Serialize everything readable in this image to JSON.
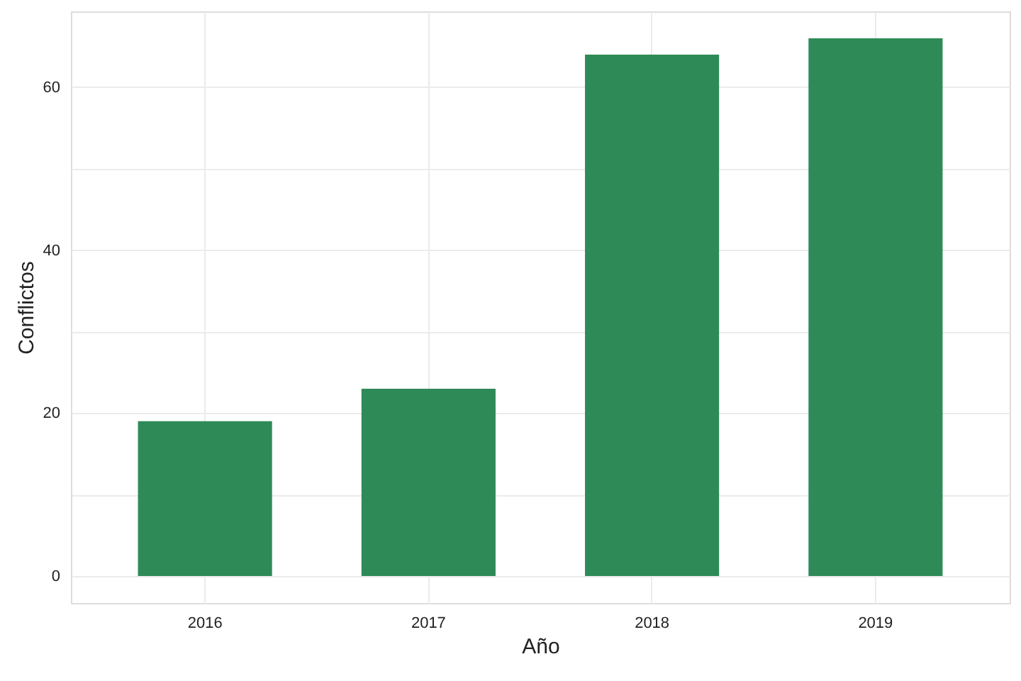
{
  "chart_data": {
    "type": "bar",
    "xlabel": "Año",
    "ylabel": "Conflictos",
    "categories": [
      "2016",
      "2017",
      "2018",
      "2019"
    ],
    "values": [
      19,
      23,
      64,
      66
    ],
    "color": "#2e8b57",
    "ylim": [
      -3.3,
      69.3
    ],
    "yticks": [
      0,
      {
        "value": 10,
        "label": null
      },
      20,
      {
        "value": 30,
        "label": null
      },
      40,
      {
        "value": 50,
        "label": null
      },
      60
    ],
    "grid": true
  }
}
